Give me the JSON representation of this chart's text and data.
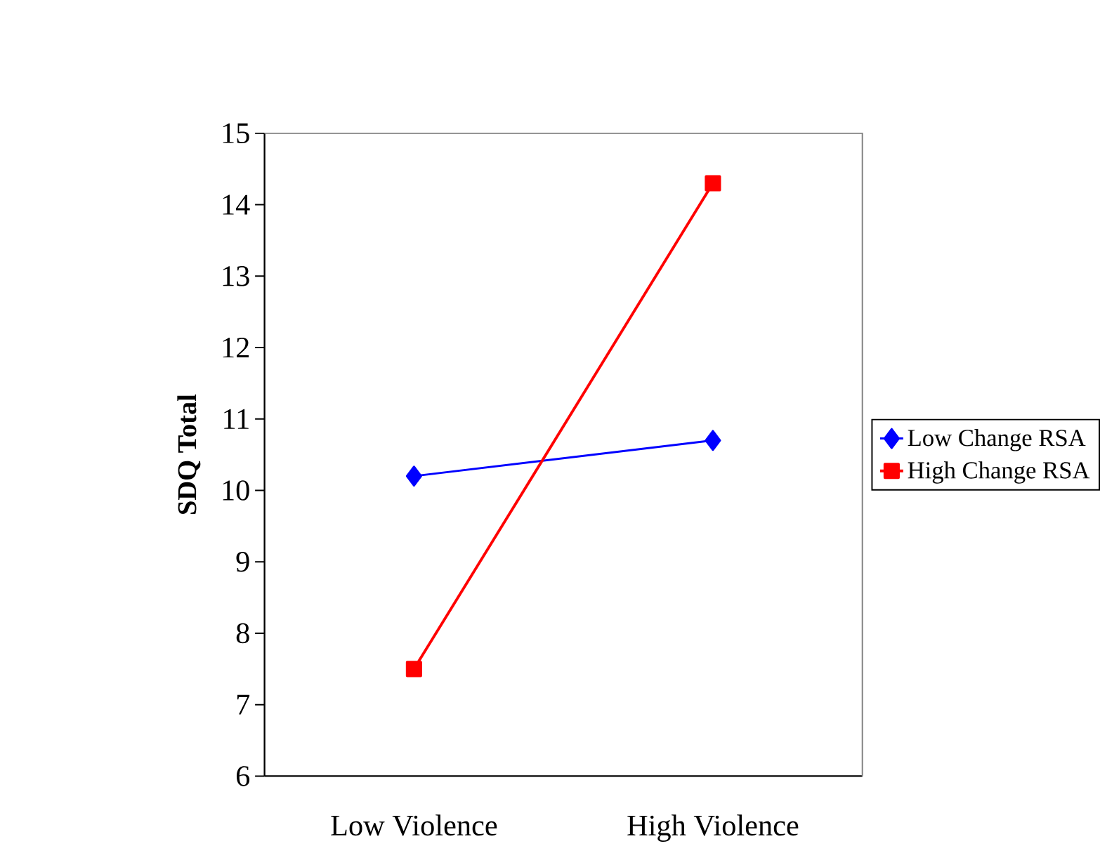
{
  "chart_data": {
    "type": "line",
    "ylabel": "SDQ Total",
    "categories": [
      "Low Violence",
      "High Violence"
    ],
    "series": [
      {
        "name": "Low Change RSA",
        "color": "#0000ff",
        "marker": "diamond",
        "values": [
          10.2,
          10.7
        ]
      },
      {
        "name": "High Change RSA",
        "color": "#ff0000",
        "marker": "square",
        "values": [
          7.5,
          14.3
        ]
      }
    ],
    "ylim": [
      6,
      15
    ],
    "yticks": [
      6,
      7,
      8,
      9,
      10,
      11,
      12,
      13,
      14,
      15
    ],
    "grid": false,
    "legend": "right"
  }
}
